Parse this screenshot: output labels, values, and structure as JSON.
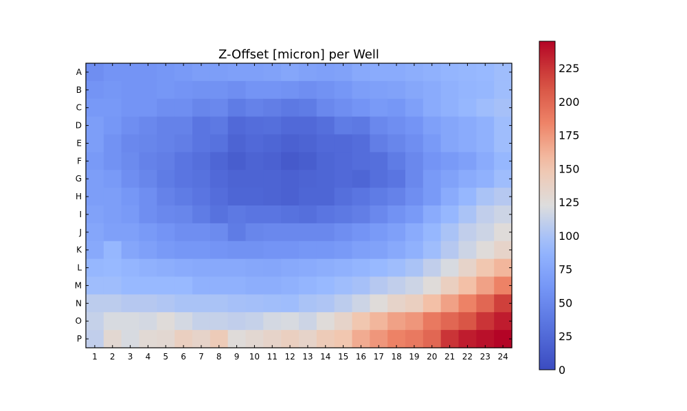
{
  "chart_data": {
    "type": "heatmap",
    "title": "Z-Offset [micron] per Well",
    "rows": [
      "A",
      "B",
      "C",
      "D",
      "E",
      "F",
      "G",
      "H",
      "I",
      "J",
      "K",
      "L",
      "M",
      "N",
      "O",
      "P"
    ],
    "cols": [
      "1",
      "2",
      "3",
      "4",
      "5",
      "6",
      "7",
      "8",
      "9",
      "10",
      "11",
      "12",
      "13",
      "14",
      "15",
      "16",
      "17",
      "18",
      "19",
      "20",
      "21",
      "22",
      "23",
      "24"
    ],
    "colorbar": {
      "min": 0,
      "max": 245,
      "ticks": [
        "0",
        "25",
        "50",
        "75",
        "100",
        "125",
        "150",
        "175",
        "200",
        "225"
      ],
      "colormap": "coolwarm"
    },
    "values": [
      [
        55,
        60,
        60,
        60,
        62,
        65,
        68,
        68,
        70,
        70,
        72,
        75,
        72,
        70,
        72,
        78,
        80,
        80,
        82,
        85,
        88,
        90,
        92,
        95
      ],
      [
        60,
        62,
        60,
        60,
        62,
        60,
        58,
        58,
        55,
        60,
        60,
        58,
        55,
        58,
        62,
        68,
        70,
        72,
        76,
        80,
        85,
        88,
        90,
        95
      ],
      [
        64,
        64,
        60,
        60,
        55,
        55,
        48,
        50,
        40,
        45,
        42,
        38,
        40,
        50,
        55,
        60,
        65,
        62,
        70,
        80,
        85,
        90,
        95,
        98
      ],
      [
        68,
        62,
        55,
        50,
        45,
        45,
        35,
        38,
        25,
        28,
        30,
        25,
        25,
        30,
        40,
        38,
        50,
        55,
        60,
        70,
        75,
        80,
        85,
        95
      ],
      [
        68,
        58,
        50,
        48,
        45,
        42,
        35,
        32,
        20,
        25,
        22,
        18,
        20,
        25,
        25,
        28,
        42,
        48,
        55,
        65,
        75,
        80,
        85,
        95
      ],
      [
        65,
        58,
        52,
        45,
        42,
        35,
        30,
        22,
        15,
        20,
        18,
        12,
        15,
        22,
        25,
        28,
        30,
        40,
        50,
        60,
        65,
        70,
        80,
        90
      ],
      [
        68,
        65,
        55,
        48,
        40,
        35,
        32,
        25,
        20,
        20,
        20,
        18,
        20,
        22,
        25,
        22,
        30,
        35,
        50,
        65,
        72,
        80,
        85,
        95
      ],
      [
        68,
        68,
        62,
        55,
        45,
        40,
        35,
        28,
        22,
        22,
        20,
        18,
        22,
        22,
        30,
        35,
        40,
        45,
        55,
        65,
        80,
        90,
        100,
        105
      ],
      [
        72,
        68,
        65,
        55,
        50,
        48,
        40,
        32,
        38,
        35,
        35,
        32,
        30,
        35,
        38,
        42,
        50,
        58,
        65,
        80,
        90,
        100,
        110,
        115
      ],
      [
        75,
        70,
        70,
        65,
        60,
        55,
        55,
        52,
        40,
        48,
        50,
        50,
        50,
        50,
        55,
        60,
        65,
        70,
        80,
        90,
        100,
        110,
        115,
        125
      ],
      [
        78,
        90,
        75,
        70,
        65,
        62,
        62,
        60,
        58,
        58,
        60,
        60,
        62,
        62,
        65,
        70,
        72,
        78,
        85,
        95,
        105,
        115,
        125,
        135
      ],
      [
        90,
        92,
        88,
        85,
        82,
        80,
        78,
        78,
        78,
        76,
        75,
        78,
        80,
        82,
        85,
        88,
        92,
        95,
        100,
        110,
        120,
        135,
        150,
        160
      ],
      [
        95,
        95,
        92,
        92,
        92,
        92,
        85,
        85,
        85,
        82,
        82,
        85,
        88,
        92,
        95,
        98,
        105,
        110,
        115,
        125,
        140,
        155,
        170,
        185
      ],
      [
        108,
        108,
        105,
        105,
        103,
        100,
        100,
        100,
        98,
        97,
        96,
        95,
        100,
        102,
        108,
        115,
        125,
        135,
        140,
        155,
        170,
        185,
        200,
        220
      ],
      [
        112,
        120,
        120,
        118,
        125,
        118,
        112,
        112,
        110,
        112,
        118,
        120,
        115,
        125,
        135,
        150,
        160,
        170,
        175,
        190,
        200,
        210,
        225,
        235
      ],
      [
        110,
        130,
        120,
        128,
        130,
        140,
        135,
        145,
        125,
        130,
        135,
        140,
        135,
        145,
        150,
        165,
        175,
        185,
        190,
        200,
        225,
        235,
        240,
        245
      ]
    ]
  }
}
